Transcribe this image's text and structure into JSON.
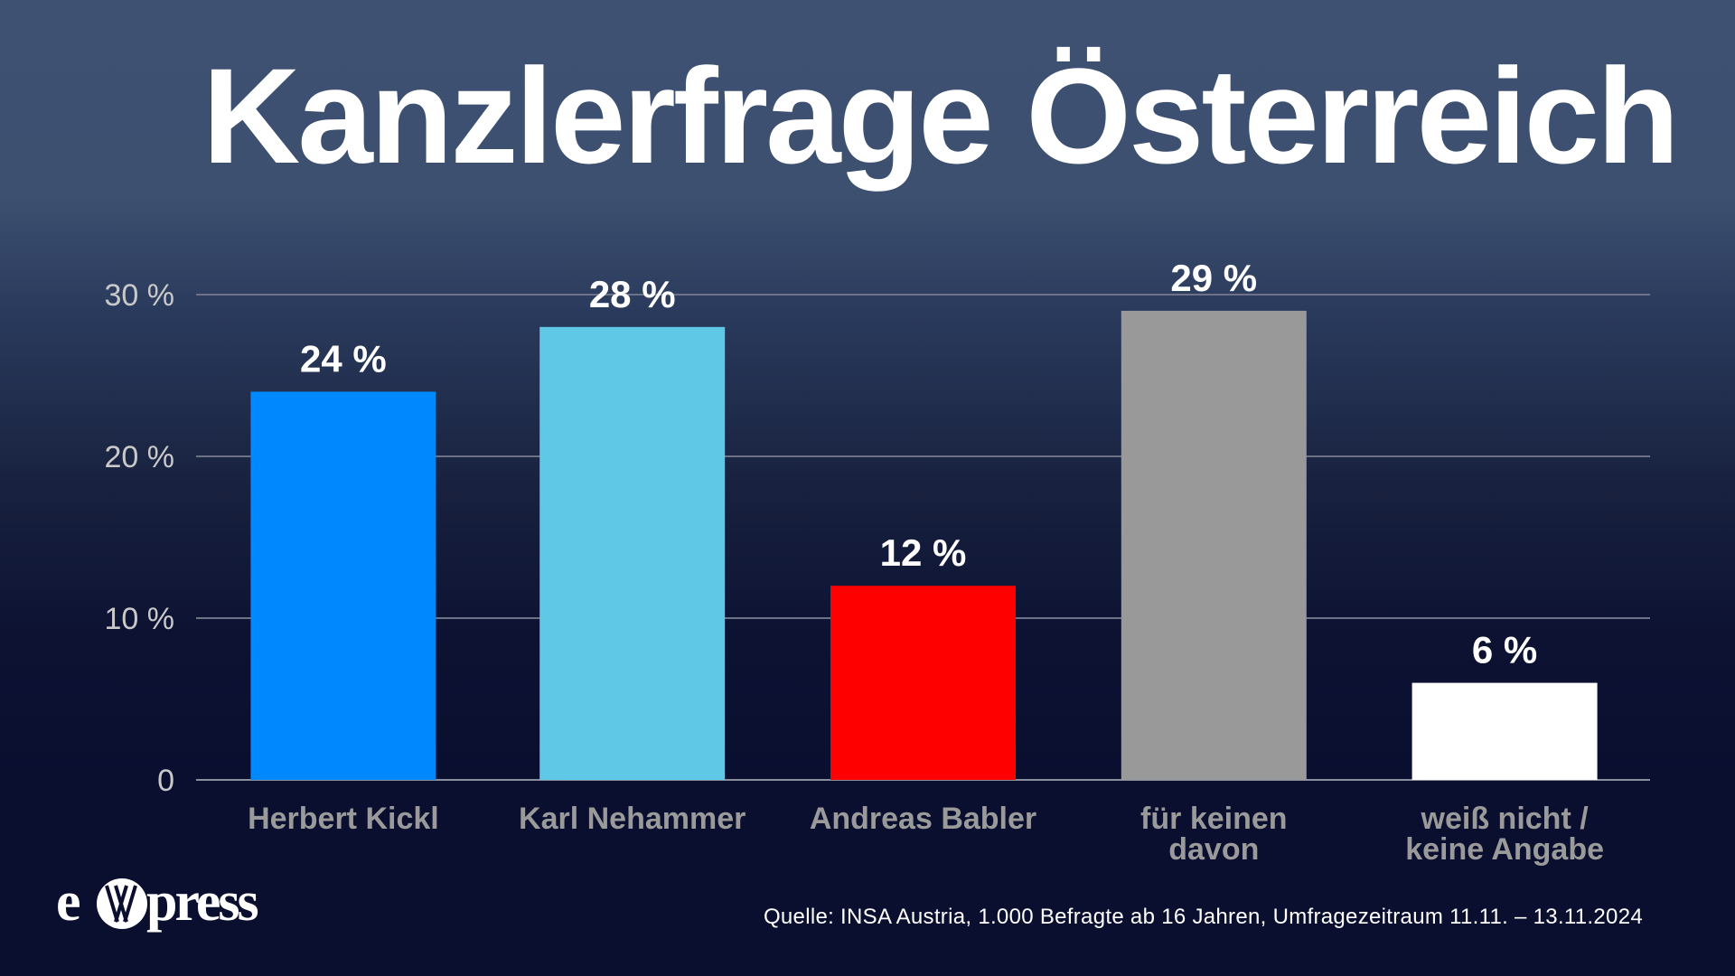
{
  "title": "Kanzlerfrage Österreich",
  "logo": {
    "text": "exxpress",
    "icon": "exxpress-logo"
  },
  "source": "Quelle: INSA Austria, 1.000 Befragte ab 16 Jahren, Umfragezeitraum 11.11. – 13.11.2024",
  "chart_data": {
    "type": "bar",
    "title": "Kanzlerfrage Österreich",
    "xlabel": "",
    "ylabel": "",
    "ylim": [
      0,
      30
    ],
    "grid": true,
    "legend": "none",
    "y_ticks": [
      {
        "value": 0,
        "label": "0"
      },
      {
        "value": 10,
        "label": "10 %"
      },
      {
        "value": 20,
        "label": "20 %"
      },
      {
        "value": 30,
        "label": "30 %"
      }
    ],
    "categories": [
      [
        "Herbert Kickl"
      ],
      [
        "Karl Nehammer"
      ],
      [
        "Andreas Babler"
      ],
      [
        "für keinen",
        "davon"
      ],
      [
        "weiß nicht /",
        "keine Angabe"
      ]
    ],
    "values": [
      24,
      28,
      12,
      29,
      6
    ],
    "value_labels": [
      "24 %",
      "28 %",
      "12 %",
      "29 %",
      "6 %"
    ],
    "colors": [
      "#0088ff",
      "#5ec8e6",
      "#ff0000",
      "#999999",
      "#ffffff"
    ]
  },
  "colors": {
    "background_top": "#3e5172",
    "background_bottom": "#0a0e2f",
    "gridline": "#6d7286",
    "tick_label": "#c9c9c9",
    "category_label": "#9a9a9a"
  }
}
